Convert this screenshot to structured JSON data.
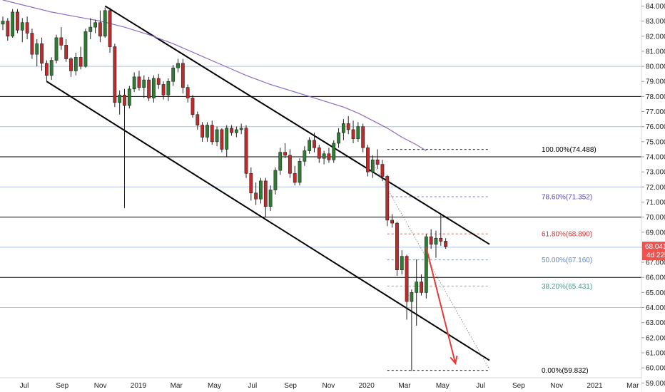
{
  "chart_data": {
    "type": "candlestick",
    "title": "",
    "x_ticks": [
      "Jul",
      "Sep",
      "Nov",
      "2019",
      "Mar",
      "May",
      "Jul",
      "Sep",
      "Nov",
      "2020",
      "Mar",
      "May",
      "Jul",
      "Sep",
      "Nov",
      "2021",
      "Mar"
    ],
    "y_ticks": [
      "84.000",
      "83.000",
      "82.000",
      "81.000",
      "80.000",
      "79.000",
      "78.000",
      "77.000",
      "76.000",
      "75.000",
      "74.000",
      "73.000",
      "72.000",
      "71.000",
      "70.000",
      "69.000",
      "68.000",
      "67.000",
      "66.000",
      "65.000",
      "64.000",
      "63.000",
      "62.000",
      "61.000",
      "60.000",
      "59.000"
    ],
    "ylim": [
      58.4,
      84.4
    ],
    "current_price": {
      "label": "68.041",
      "countdown": "4d 22h",
      "value": 68.041,
      "color": "#ef5350"
    },
    "horizontal_levels": [
      {
        "value": 80,
        "color": "#aac4ee"
      },
      {
        "value": 78,
        "color": "#000000"
      },
      {
        "value": 76,
        "color": "#aac4ee"
      },
      {
        "value": 74,
        "color": "#000000"
      },
      {
        "value": 72,
        "color": "#aac4ee"
      },
      {
        "value": 70,
        "color": "#000000"
      },
      {
        "value": 68,
        "color": "#aac4ee"
      },
      {
        "value": 66,
        "color": "#000000"
      },
      {
        "value": 64,
        "color": "#aac4ee"
      }
    ],
    "fibonacci": [
      {
        "label": "100.00%(74.488)",
        "value": 74.488,
        "color": "#000000"
      },
      {
        "label": "78.60%(71.352)",
        "value": 71.352,
        "color": "#5b49b5"
      },
      {
        "label": "61.80%(68.890)",
        "value": 68.89,
        "color": "#d32f2f"
      },
      {
        "label": "50.00%(67.160)",
        "value": 67.16,
        "color": "#5a86c2"
      },
      {
        "label": "38.20%(65.431)",
        "value": 65.431,
        "color": "#4a9a8a"
      },
      {
        "label": "0.00%(59.832)",
        "value": 59.832,
        "color": "#000000"
      }
    ],
    "colors": {
      "up": "#2e7d32",
      "down": "#c62828",
      "ma": "#8e6bbf",
      "arrow": "#e53935"
    },
    "candles": [
      [
        82.8,
        83.3,
        82.4,
        83.0
      ],
      [
        83.0,
        83.2,
        81.7,
        82.0
      ],
      [
        82.0,
        83.8,
        81.9,
        83.6
      ],
      [
        83.6,
        83.8,
        82.2,
        82.4
      ],
      [
        82.4,
        83.2,
        81.6,
        82.9
      ],
      [
        82.9,
        83.3,
        81.8,
        82.2
      ],
      [
        82.2,
        82.5,
        80.5,
        80.8
      ],
      [
        80.8,
        81.8,
        80.0,
        81.5
      ],
      [
        81.5,
        81.9,
        79.7,
        80.2
      ],
      [
        80.2,
        80.4,
        79.0,
        79.4
      ],
      [
        79.4,
        80.6,
        79.1,
        80.4
      ],
      [
        80.4,
        82.1,
        80.2,
        81.9
      ],
      [
        81.9,
        82.6,
        81.1,
        81.4
      ],
      [
        81.4,
        81.8,
        80.3,
        80.5
      ],
      [
        80.5,
        80.6,
        79.3,
        79.7
      ],
      [
        79.7,
        80.9,
        79.4,
        80.6
      ],
      [
        80.6,
        81.3,
        79.8,
        80.0
      ],
      [
        80.0,
        82.5,
        79.9,
        82.3
      ],
      [
        82.3,
        83.2,
        81.8,
        82.6
      ],
      [
        82.6,
        83.1,
        82.2,
        82.9
      ],
      [
        82.9,
        83.7,
        81.6,
        82.0
      ],
      [
        82.0,
        83.9,
        81.9,
        83.7
      ],
      [
        83.7,
        83.9,
        80.9,
        81.3
      ],
      [
        81.3,
        81.5,
        77.3,
        77.6
      ],
      [
        77.6,
        78.4,
        76.8,
        78.1
      ],
      [
        78.1,
        78.5,
        70.6,
        77.4
      ],
      [
        77.4,
        78.7,
        77.2,
        78.5
      ],
      [
        78.5,
        79.6,
        78.3,
        79.3
      ],
      [
        79.3,
        79.7,
        78.4,
        78.6
      ],
      [
        78.6,
        79.4,
        77.9,
        79.1
      ],
      [
        79.1,
        79.3,
        77.7,
        77.9
      ],
      [
        77.9,
        79.4,
        77.6,
        79.2
      ],
      [
        79.2,
        79.5,
        78.5,
        78.8
      ],
      [
        78.8,
        79.0,
        77.8,
        78.1
      ],
      [
        78.1,
        79.2,
        77.7,
        79.0
      ],
      [
        79.0,
        80.1,
        78.7,
        79.9
      ],
      [
        79.9,
        80.5,
        79.6,
        80.2
      ],
      [
        80.2,
        80.5,
        78.2,
        78.6
      ],
      [
        78.6,
        78.8,
        77.6,
        77.9
      ],
      [
        77.9,
        78.1,
        76.6,
        76.8
      ],
      [
        76.8,
        77.0,
        75.8,
        76.1
      ],
      [
        76.1,
        76.3,
        75.0,
        75.3
      ],
      [
        75.3,
        76.3,
        75.0,
        76.1
      ],
      [
        76.1,
        76.4,
        74.8,
        75.0
      ],
      [
        75.0,
        76.0,
        74.7,
        75.8
      ],
      [
        75.8,
        75.9,
        74.3,
        74.5
      ],
      [
        74.5,
        76.1,
        74.0,
        75.9
      ],
      [
        75.9,
        76.1,
        75.4,
        75.6
      ],
      [
        75.6,
        76.0,
        75.3,
        75.8
      ],
      [
        75.8,
        76.2,
        75.5,
        75.9
      ],
      [
        75.9,
        76.1,
        72.6,
        72.9
      ],
      [
        72.9,
        73.3,
        71.1,
        71.6
      ],
      [
        71.6,
        72.3,
        70.8,
        71.2
      ],
      [
        71.2,
        72.6,
        70.9,
        72.4
      ],
      [
        72.4,
        72.6,
        70.0,
        70.7
      ],
      [
        70.7,
        72.1,
        70.4,
        71.8
      ],
      [
        71.8,
        73.3,
        71.5,
        73.1
      ],
      [
        73.1,
        74.6,
        72.8,
        74.3
      ],
      [
        74.3,
        74.9,
        73.9,
        74.1
      ],
      [
        74.1,
        74.5,
        72.6,
        72.9
      ],
      [
        72.9,
        73.4,
        72.1,
        72.3
      ],
      [
        72.3,
        73.9,
        72.1,
        73.7
      ],
      [
        73.7,
        74.7,
        73.4,
        74.4
      ],
      [
        74.4,
        75.3,
        74.2,
        75.1
      ],
      [
        75.1,
        75.6,
        74.3,
        74.6
      ],
      [
        74.6,
        74.8,
        73.6,
        73.9
      ],
      [
        73.9,
        74.4,
        73.5,
        74.2
      ],
      [
        74.2,
        74.6,
        73.6,
        73.8
      ],
      [
        73.8,
        75.1,
        73.6,
        74.9
      ],
      [
        74.9,
        75.9,
        74.6,
        75.6
      ],
      [
        75.6,
        76.5,
        75.1,
        76.2
      ],
      [
        76.2,
        76.7,
        75.5,
        75.8
      ],
      [
        75.8,
        76.4,
        74.9,
        75.2
      ],
      [
        75.2,
        76.3,
        75.0,
        76.0
      ],
      [
        76.0,
        76.2,
        74.3,
        74.6
      ],
      [
        74.6,
        74.8,
        72.7,
        73.0
      ],
      [
        73.0,
        74.1,
        72.6,
        73.8
      ],
      [
        73.8,
        74.5,
        73.2,
        73.5
      ],
      [
        73.5,
        73.8,
        72.4,
        72.7
      ],
      [
        72.7,
        72.8,
        69.4,
        69.8
      ],
      [
        69.8,
        70.2,
        69.3,
        69.6
      ],
      [
        69.6,
        69.7,
        66.1,
        66.5
      ],
      [
        66.5,
        67.8,
        66.2,
        67.4
      ],
      [
        67.4,
        67.5,
        63.2,
        64.4
      ],
      [
        64.4,
        65.2,
        59.8,
        65.0
      ],
      [
        65.0,
        67.2,
        62.8,
        65.7
      ],
      [
        65.7,
        66.2,
        64.8,
        65.0
      ],
      [
        65.0,
        68.9,
        64.6,
        68.7
      ],
      [
        68.7,
        69.2,
        67.9,
        68.2
      ],
      [
        68.2,
        69.1,
        67.3,
        68.6
      ],
      [
        68.6,
        70.2,
        68.1,
        68.4
      ],
      [
        68.4,
        68.6,
        67.9,
        68.04
      ]
    ],
    "moving_average": [
      [
        0,
        84.4
      ],
      [
        5,
        84.0
      ],
      [
        10,
        83.6
      ],
      [
        15,
        83.3
      ],
      [
        20,
        83.0
      ],
      [
        25,
        82.6
      ],
      [
        30,
        82.1
      ],
      [
        35,
        81.5
      ],
      [
        40,
        80.8
      ],
      [
        45,
        80.1
      ],
      [
        50,
        79.4
      ],
      [
        55,
        78.8
      ],
      [
        60,
        78.3
      ],
      [
        65,
        77.8
      ],
      [
        70,
        77.3
      ],
      [
        73,
        76.9
      ],
      [
        76,
        76.4
      ],
      [
        79,
        75.9
      ],
      [
        82,
        75.3
      ],
      [
        85,
        74.8
      ],
      [
        87,
        74.4
      ]
    ],
    "trendlines": [
      {
        "from": [
          21,
          84.0
        ],
        "to": [
          100,
          68.2
        ],
        "color": "#000000"
      },
      {
        "from": [
          9,
          79.0
        ],
        "to": [
          100,
          60.5
        ],
        "color": "#000000"
      }
    ],
    "dotted_projection": {
      "from": [
        76,
        73.6
      ],
      "to": [
        100,
        59.9
      ]
    },
    "projection_arrow": {
      "from": [
        87,
        68.0
      ],
      "to": [
        93,
        60.3
      ]
    }
  }
}
